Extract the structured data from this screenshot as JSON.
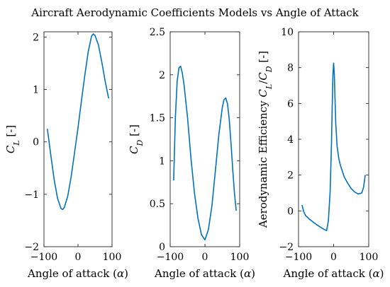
{
  "figure": {
    "title": "Aircraft Aerodynamic Coefficients Models vs Angle of Attack"
  },
  "colors": {
    "line": "#0072BD",
    "axes": "#262626"
  },
  "chart_data": [
    {
      "type": "line",
      "xlabel": "Angle of attack (α)",
      "ylabel": "C_L [-]",
      "xlim": [
        -100,
        100
      ],
      "ylim": [
        -2,
        2.1
      ],
      "xticks": [
        -100,
        0,
        100
      ],
      "yticks": [
        -2,
        -1,
        0,
        1,
        2
      ],
      "xtick_labels": [
        "−100",
        "0",
        "100"
      ],
      "ytick_labels": [
        "−2",
        "−1",
        "0",
        "1",
        "2"
      ],
      "grid": false,
      "x": [
        -90,
        -80,
        -70,
        -60,
        -50,
        -45,
        -40,
        -30,
        -20,
        -10,
        0,
        10,
        20,
        30,
        40,
        45,
        50,
        60,
        70,
        80,
        90
      ],
      "y": [
        0.25,
        -0.25,
        -0.72,
        -1.08,
        -1.27,
        -1.29,
        -1.25,
        -1.03,
        -0.66,
        -0.2,
        0.27,
        0.78,
        1.27,
        1.72,
        2.02,
        2.06,
        2.03,
        1.85,
        1.52,
        1.15,
        0.83
      ]
    },
    {
      "type": "line",
      "xlabel": "Angle of attack (α)",
      "ylabel": "C_D [-]",
      "xlim": [
        -100,
        100
      ],
      "ylim": [
        0,
        2.5
      ],
      "xticks": [
        -100,
        0,
        100
      ],
      "yticks": [
        0,
        0.5,
        1,
        1.5,
        2,
        2.5
      ],
      "xtick_labels": [
        "−100",
        "0",
        "100"
      ],
      "ytick_labels": [
        "0",
        "0.5",
        "1",
        "1.5",
        "2",
        "2.5"
      ],
      "grid": false,
      "x": [
        -90,
        -85,
        -80,
        -75,
        -70,
        -65,
        -60,
        -50,
        -40,
        -30,
        -20,
        -10,
        0,
        10,
        20,
        30,
        40,
        50,
        55,
        60,
        65,
        70,
        75,
        80,
        85,
        90
      ],
      "y": [
        0.77,
        1.5,
        1.92,
        2.08,
        2.1,
        2.02,
        1.88,
        1.5,
        1.02,
        0.62,
        0.33,
        0.14,
        0.08,
        0.2,
        0.47,
        0.88,
        1.3,
        1.62,
        1.71,
        1.73,
        1.66,
        1.48,
        1.2,
        0.9,
        0.63,
        0.42
      ]
    },
    {
      "type": "line",
      "xlabel": "Angle of attack (α)",
      "ylabel": "Aerodynamic Efficiency C_L/C_D [-]",
      "xlim": [
        -100,
        100
      ],
      "ylim": [
        -2,
        10
      ],
      "xticks": [
        -100,
        0,
        100
      ],
      "yticks": [
        -2,
        0,
        2,
        4,
        6,
        8,
        10
      ],
      "xtick_labels": [
        "−100",
        "0",
        "100"
      ],
      "ytick_labels": [
        "−2",
        "0",
        "2",
        "4",
        "6",
        "8",
        "10"
      ],
      "grid": false,
      "x": [
        -90,
        -85,
        -80,
        -70,
        -60,
        -50,
        -40,
        -30,
        -20,
        -15,
        -10,
        -6,
        -4,
        -2,
        0,
        2,
        4,
        6,
        10,
        15,
        20,
        30,
        40,
        50,
        60,
        70,
        80,
        85,
        88,
        90
      ],
      "y": [
        0.33,
        -0.05,
        -0.25,
        -0.45,
        -0.6,
        -0.75,
        -0.88,
        -1.0,
        -1.1,
        -0.55,
        1.1,
        3.8,
        5.8,
        7.6,
        8.25,
        7.6,
        6.2,
        4.9,
        3.6,
        2.9,
        2.5,
        1.9,
        1.55,
        1.25,
        1.05,
        0.95,
        1.0,
        1.3,
        1.7,
        2.0
      ]
    }
  ]
}
